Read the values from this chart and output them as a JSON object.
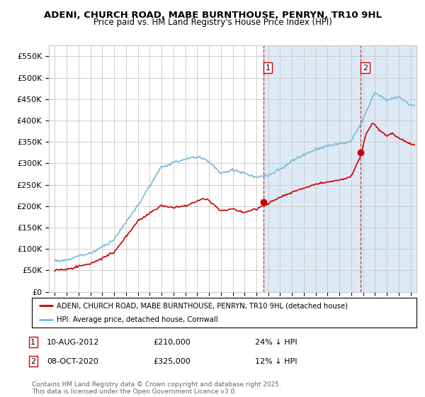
{
  "title": "ADENI, CHURCH ROAD, MABE BURNTHOUSE, PENRYN, TR10 9HL",
  "subtitle": "Price paid vs. HM Land Registry's House Price Index (HPI)",
  "yticks": [
    0,
    50000,
    100000,
    150000,
    200000,
    250000,
    300000,
    350000,
    400000,
    450000,
    500000,
    550000
  ],
  "ytick_labels": [
    "£0",
    "£50K",
    "£100K",
    "£150K",
    "£200K",
    "£250K",
    "£300K",
    "£350K",
    "£400K",
    "£450K",
    "£500K",
    "£550K"
  ],
  "xlim_start": 1994.5,
  "xlim_end": 2025.5,
  "ylim_min": 0,
  "ylim_max": 575000,
  "sale1_date": "10-AUG-2012",
  "sale1_price": 210000,
  "sale1_pct": "24% ↓ HPI",
  "sale2_date": "08-OCT-2020",
  "sale2_price": 325000,
  "sale2_pct": "12% ↓ HPI",
  "sale1_year": 2012.6,
  "sale2_year": 2020.8,
  "hpi_color": "#7ab8d9",
  "sold_color": "#cc0000",
  "legend_label1": "ADENI, CHURCH ROAD, MABE BURNTHOUSE, PENRYN, TR10 9HL (detached house)",
  "legend_label2": "HPI: Average price, detached house, Cornwall",
  "footer": "Contains HM Land Registry data © Crown copyright and database right 2025.\nThis data is licensed under the Open Government Licence v3.0.",
  "bg_color": "#ffffff",
  "grid_color": "#c8c8c8",
  "shade_color": "#ddeaf5"
}
